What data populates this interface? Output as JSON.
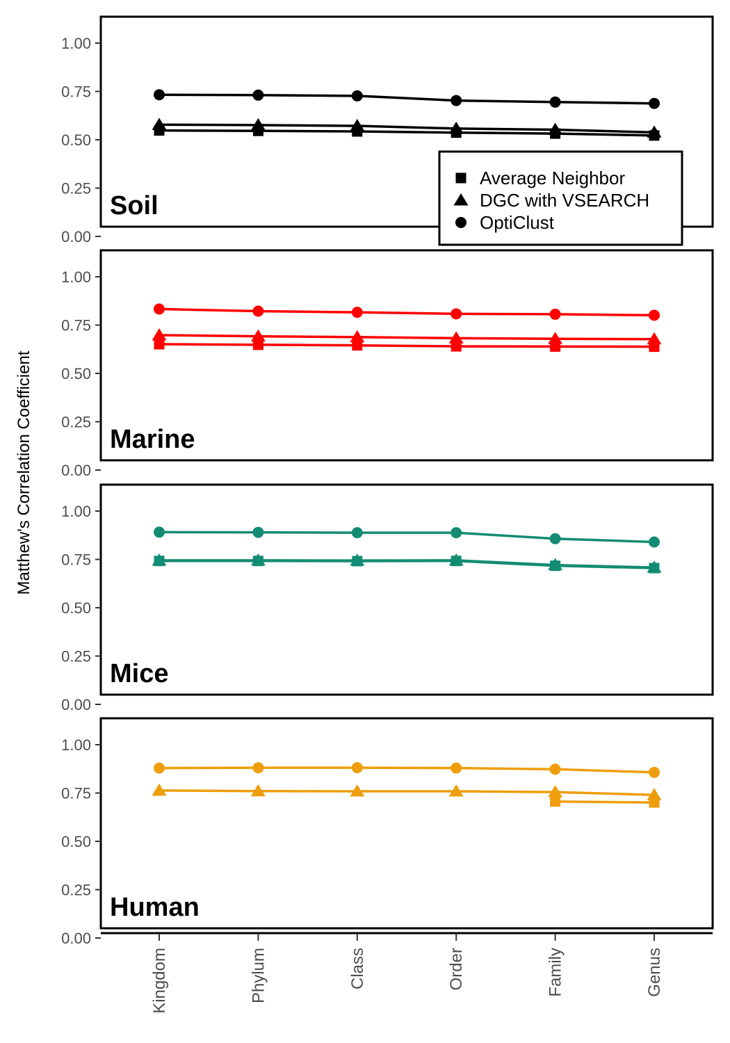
{
  "chart_data": {
    "type": "line",
    "ylabel": "Matthew's Correlation Coefficient",
    "xlabel": "",
    "categories": [
      "Kingdom",
      "Phylum",
      "Class",
      "Order",
      "Family",
      "Genus"
    ],
    "ylim": [
      0,
      1
    ],
    "yticks": [
      "0.00",
      "0.25",
      "0.50",
      "0.75",
      "1.00"
    ],
    "grid": false,
    "legend": {
      "placement": "bottom-right of first panel",
      "entries": [
        {
          "label": "Average Neighbor",
          "marker": "square"
        },
        {
          "label": "DGC with VSEARCH",
          "marker": "triangle"
        },
        {
          "label": "OptiClust",
          "marker": "circle"
        }
      ]
    },
    "panels": [
      {
        "title": "Soil",
        "color": "#000000",
        "series": [
          {
            "name": "OptiClust",
            "marker": "circle",
            "values": [
              0.733,
              0.731,
              0.727,
              0.703,
              0.695,
              0.688
            ]
          },
          {
            "name": "DGC with VSEARCH",
            "marker": "triangle",
            "values": [
              0.578,
              0.576,
              0.572,
              0.558,
              0.552,
              0.538
            ]
          },
          {
            "name": "Average Neighbor",
            "marker": "square",
            "values": [
              0.548,
              0.546,
              0.543,
              0.537,
              0.532,
              0.522
            ]
          }
        ]
      },
      {
        "title": "Marine",
        "color": "#ff0000",
        "series": [
          {
            "name": "OptiClust",
            "marker": "circle",
            "values": [
              0.833,
              0.822,
              0.816,
              0.808,
              0.806,
              0.801
            ]
          },
          {
            "name": "DGC with VSEARCH",
            "marker": "triangle",
            "values": [
              0.698,
              0.692,
              0.688,
              0.682,
              0.679,
              0.677
            ]
          },
          {
            "name": "Average Neighbor",
            "marker": "square",
            "values": [
              0.651,
              0.648,
              0.645,
              0.64,
              0.639,
              0.638
            ]
          }
        ]
      },
      {
        "title": "Mice",
        "color": "#138c73",
        "series": [
          {
            "name": "OptiClust",
            "marker": "circle",
            "values": [
              0.891,
              0.89,
              0.888,
              0.888,
              0.857,
              0.84
            ]
          },
          {
            "name": "DGC with VSEARCH",
            "marker": "triangle",
            "values": [
              0.745,
              0.745,
              0.744,
              0.745,
              0.721,
              0.708
            ]
          },
          {
            "name": "Average Neighbor",
            "marker": "square",
            "values": [
              0.742,
              0.742,
              0.741,
              0.742,
              0.717,
              0.705
            ]
          }
        ]
      },
      {
        "title": "Human",
        "color": "#ee9e0d",
        "series": [
          {
            "name": "OptiClust",
            "marker": "circle",
            "values": [
              0.879,
              0.881,
              0.881,
              0.879,
              0.873,
              0.857
            ]
          },
          {
            "name": "DGC with VSEARCH",
            "marker": "triangle",
            "values": [
              0.763,
              0.76,
              0.759,
              0.759,
              0.755,
              0.74
            ]
          },
          {
            "name": "Average Neighbor",
            "marker": "square",
            "values": [
              null,
              null,
              null,
              null,
              0.706,
              0.701
            ]
          }
        ]
      }
    ]
  }
}
